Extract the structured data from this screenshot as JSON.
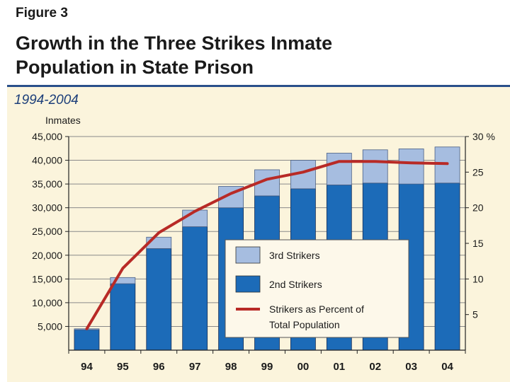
{
  "figure_label": "Figure 3",
  "title_line1": "Growth in the Three Strikes Inmate",
  "title_line2": "Population in State Prison",
  "subtitle": "1994-2004",
  "colors": {
    "second_strikers": "#1c6bb8",
    "third_strikers": "#a6bde0",
    "percent_line": "#b82a26",
    "panel": "#fbf4dc",
    "rule": "#2a4f8a"
  },
  "chart_data": {
    "type": "bar",
    "title": "Growth in the Three Strikes Inmate Population in State Prison",
    "subtitle": "1994-2004",
    "categories": [
      "94",
      "95",
      "96",
      "97",
      "98",
      "99",
      "00",
      "01",
      "02",
      "03",
      "04"
    ],
    "series": [
      {
        "name": "2nd Strikers",
        "values": [
          4300,
          14000,
          21400,
          26000,
          30000,
          32500,
          34000,
          34800,
          35200,
          35000,
          35200
        ],
        "stacked": true
      },
      {
        "name": "3rd Strikers",
        "values": [
          200,
          1300,
          2400,
          3500,
          4500,
          5500,
          6000,
          6700,
          7000,
          7400,
          7600
        ],
        "stacked": true
      },
      {
        "name": "Strikers as Percent of Total Population",
        "values": [
          3,
          11.5,
          16.5,
          19.5,
          22,
          24,
          25,
          26.5,
          26.5,
          26.3,
          26.2
        ],
        "axis": "right",
        "render": "line"
      }
    ],
    "ylabel": "Inmates",
    "ylim": [
      0,
      45000
    ],
    "yticks": [
      "45,000",
      "40,000",
      "35,000",
      "30,000",
      "25,000",
      "20,000",
      "15,000",
      "10,000",
      "5,000"
    ],
    "ytick_values": [
      45000,
      40000,
      35000,
      30000,
      25000,
      20000,
      15000,
      10000,
      5000
    ],
    "y2lim": [
      0,
      30
    ],
    "y2ticks": [
      "30 %",
      "25",
      "20",
      "15",
      "10",
      "5"
    ],
    "y2tick_values": [
      30,
      25,
      20,
      15,
      10,
      5
    ],
    "legend": [
      {
        "label": "3rd Strikers"
      },
      {
        "label": "2nd Strikers"
      },
      {
        "label_line1": "Strikers as Percent of",
        "label_line2": "Total Population"
      }
    ],
    "legend_position": "center-right inside plot",
    "grid": true
  }
}
